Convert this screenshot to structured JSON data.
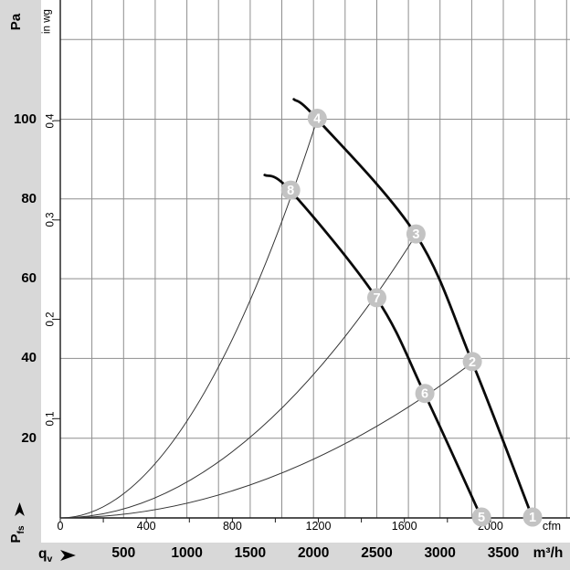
{
  "labels": {
    "y_primary_title": "Pa",
    "y_secondary_title": "in wg",
    "x_secondary_unit": "cfm",
    "x_primary_unit": "m³/h",
    "pressure_symbol_main": "P",
    "pressure_symbol_sub": "fs",
    "flow_symbol_main": "q",
    "flow_symbol_sub": "v"
  },
  "colors": {
    "band_background": "#d8d8d8",
    "plot_background": "#ffffff",
    "grid": "#8e8e8e",
    "axis": "#1a1a1a",
    "fan_curve": "#0a0a0a",
    "system_curve": "#333333",
    "marker_fill": "#c3c3c3",
    "marker_text": "#ffffff",
    "text": "#000000"
  },
  "chart_data": {
    "type": "line",
    "description": "Fan performance: free static pressure Pfs versus volume flow qv, two fan speed curves with system resistance parabolas and numbered operating points",
    "x_axis_primary": {
      "label": "m³/h",
      "tick_labels": [
        500,
        1000,
        1500,
        2000,
        2500,
        3000,
        3500
      ],
      "gridline_step": 250,
      "range": [
        0,
        4000
      ]
    },
    "x_axis_secondary": {
      "label": "cfm",
      "tick_labels": [
        0,
        400,
        800,
        1200,
        1600,
        2000
      ],
      "tick_step": 200,
      "max_tick": 2200
    },
    "y_axis_primary": {
      "label": "Pa",
      "tick_labels": [
        20,
        40,
        60,
        80,
        100
      ],
      "gridline_step": 20,
      "gridline_max": 120,
      "range": [
        0,
        130
      ]
    },
    "y_axis_secondary": {
      "label": "in wg",
      "tick_labels": [
        "0.1",
        "0.2",
        "0.3",
        "0.4"
      ],
      "pa_per_unit": 249.089
    },
    "fan_curves": [
      {
        "name": "fan-curve-high-speed",
        "points_q_pa": [
          [
            1845,
            105
          ],
          [
            2030,
            100
          ],
          [
            2810,
            71
          ],
          [
            3255,
            39
          ],
          [
            3731,
            0
          ]
        ]
      },
      {
        "name": "fan-curve-low-speed",
        "points_q_pa": [
          [
            1615,
            86
          ],
          [
            1820,
            82
          ],
          [
            2500,
            55
          ],
          [
            2880,
            31
          ],
          [
            3327,
            0
          ]
        ]
      }
    ],
    "system_curves": [
      {
        "name": "system-curve-A",
        "end_q_pa": [
          2030,
          100
        ]
      },
      {
        "name": "system-curve-B",
        "end_q_pa": [
          2810,
          71
        ]
      },
      {
        "name": "system-curve-C",
        "end_q_pa": [
          3255,
          39
        ]
      }
    ],
    "operating_points": [
      {
        "label": "1",
        "q": 3731,
        "pa": 0
      },
      {
        "label": "2",
        "q": 3255,
        "pa": 39
      },
      {
        "label": "3",
        "q": 2810,
        "pa": 71
      },
      {
        "label": "4",
        "q": 2030,
        "pa": 100
      },
      {
        "label": "5",
        "q": 3327,
        "pa": 0
      },
      {
        "label": "6",
        "q": 2880,
        "pa": 31
      },
      {
        "label": "7",
        "q": 2500,
        "pa": 55
      },
      {
        "label": "8",
        "q": 1820,
        "pa": 82
      }
    ]
  }
}
